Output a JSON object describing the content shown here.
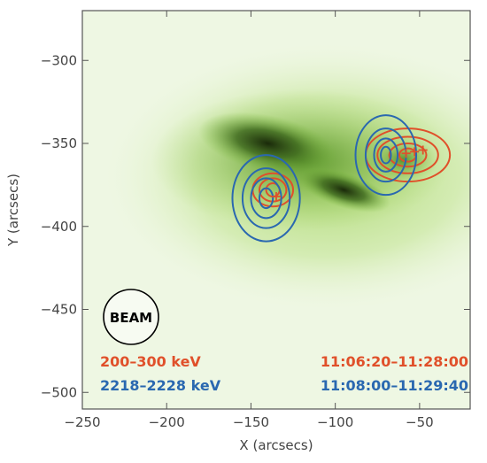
{
  "chart_data": {
    "type": "contour",
    "xlabel": "X (arcsecs)",
    "ylabel": "Y (arcsecs)",
    "xlim": [
      -250,
      -20
    ],
    "ylim": [
      -510,
      -270
    ],
    "x_ticks": [
      -250,
      -200,
      -150,
      -100,
      -50
    ],
    "y_ticks": [
      -300,
      -350,
      -400,
      -450,
      -500
    ],
    "x_tick_labels": [
      "−250",
      "−200",
      "−150",
      "−100",
      "−50"
    ],
    "y_tick_labels": [
      "−300",
      "−350",
      "−400",
      "−450",
      "−500"
    ],
    "background": {
      "description": "green-scale EUV image of flare loop arcade",
      "color": "#7fbf3f"
    },
    "beam_label": "BEAM",
    "series": [
      {
        "name": "200–300 keV",
        "time": "11:06:20–11:28:00",
        "color": "#e0502a",
        "sources": [
          {
            "center": [
              -137,
              -378
            ],
            "levels_radii": [
              [
                12,
                10
              ],
              [
                8,
                7
              ],
              [
                4,
                4
              ]
            ]
          },
          {
            "center": [
              -57,
              -357
            ],
            "levels_radii": [
              [
                25,
                16
              ],
              [
                18,
                11
              ],
              [
                11,
                7
              ],
              [
                5,
                4
              ]
            ]
          }
        ]
      },
      {
        "name": "2218–2228 keV",
        "time": "11:08:00–11:29:40",
        "color": "#2a68b0",
        "sources": [
          {
            "center": [
              -141,
              -383
            ],
            "levels_radii": [
              [
                20,
                26
              ],
              [
                14,
                18
              ],
              [
                9,
                12
              ],
              [
                4,
                6
              ]
            ]
          },
          {
            "center": [
              -70,
              -357
            ],
            "levels_radii": [
              [
                18,
                24
              ],
              [
                12,
                16
              ],
              [
                7,
                10
              ],
              [
                3,
                5
              ]
            ]
          }
        ]
      }
    ],
    "legend": [
      {
        "label": "200–300 keV",
        "time": "11:06:20–11:28:00",
        "color": "#e0502a"
      },
      {
        "label": "2218–2228 keV",
        "time": "11:08:00–11:29:40",
        "color": "#2a68b0"
      }
    ],
    "markers": [
      {
        "symbol": "+",
        "x": -135,
        "y": -382,
        "color": "#e0502a"
      },
      {
        "symbol": "+",
        "x": -58,
        "y": -356,
        "color": "#e0502a"
      },
      {
        "symbol": "+",
        "x": -53,
        "y": -355,
        "color": "#e0502a"
      },
      {
        "symbol": "+",
        "x": -48,
        "y": -354,
        "color": "#e0502a"
      }
    ]
  }
}
